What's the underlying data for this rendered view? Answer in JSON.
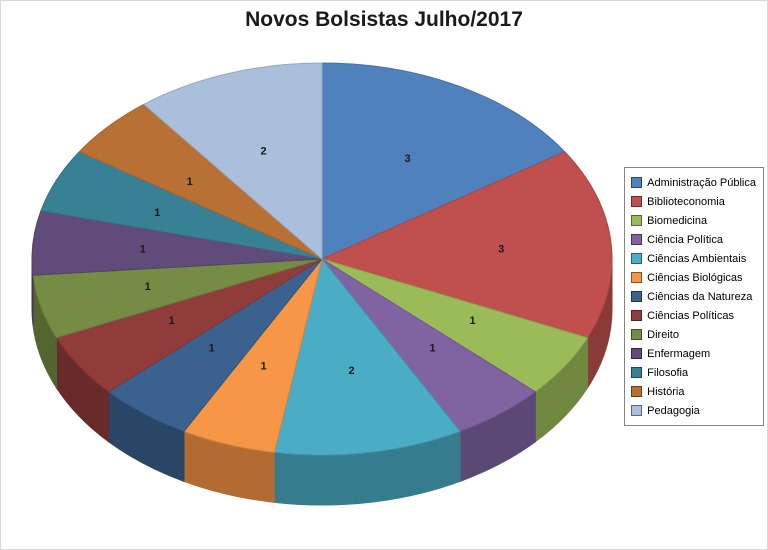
{
  "page": {
    "background_color": "#ffffff"
  },
  "chart_data": {
    "type": "pie",
    "effect": "3d",
    "title": "Novos Bolsistas Julho/2017",
    "legend_position": "right",
    "start_angle_deg": 0,
    "direction": "clockwise",
    "total": 19,
    "categories": [
      "Administração Pública",
      "Biblioteconomia",
      "Biomedicina",
      "Ciência Política",
      "Ciências Ambientais",
      "Ciências Biológicas",
      "Ciências da Natureza",
      "Ciências Políticas",
      "Direito",
      "Enfermagem",
      "Filosofia",
      "História",
      "Pedagogia"
    ],
    "values": [
      3,
      3,
      1,
      1,
      2,
      1,
      1,
      1,
      1,
      1,
      1,
      1,
      2
    ],
    "data_labels": [
      "3",
      "3",
      "1",
      "1",
      "2",
      "1",
      "1",
      "1",
      "1",
      "1",
      "1",
      "1",
      "2"
    ],
    "colors": [
      "#4F81BD",
      "#C0504D",
      "#9BBB59",
      "#8064A2",
      "#4BACC6",
      "#F79646",
      "#3B618E",
      "#903C3A",
      "#748C43",
      "#604B7A",
      "#388194",
      "#B97034",
      "#A9BFDC"
    ]
  }
}
